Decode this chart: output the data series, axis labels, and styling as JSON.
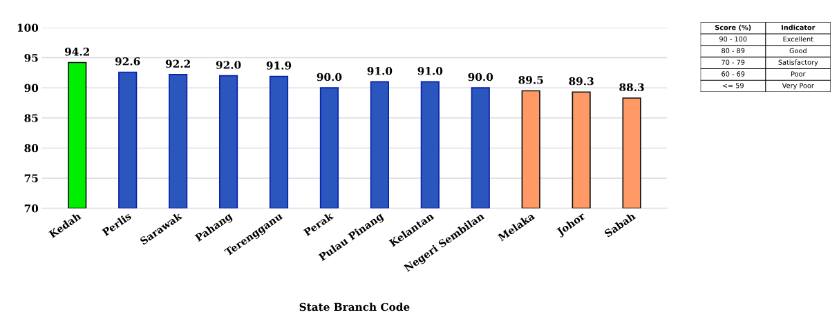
{
  "chart_data": [
    {
      "type": "bar",
      "xlabel": "State Branch Code",
      "categories": [
        "Kedah",
        "Perlis",
        "Sarawak",
        "Pahang",
        "Terengganu",
        "Perak",
        "Pulau Pinang",
        "Kelantan",
        "Negeri Sembilan",
        "Melaka",
        "Johor",
        "Sabah"
      ],
      "values": [
        94.2,
        92.6,
        92.2,
        92.0,
        91.9,
        90.0,
        91.0,
        91.0,
        90.0,
        89.5,
        89.3,
        88.3
      ],
      "value_labels": [
        "94.2",
        "92.6",
        "92.2",
        "92.0",
        "91.9",
        "90.0",
        "91.0",
        "91.0",
        "90.0",
        "89.5",
        "89.3",
        "88.3"
      ],
      "colors": [
        "#00ee00",
        "#2a56bd",
        "#2a56bd",
        "#2a56bd",
        "#2a56bd",
        "#2a56bd",
        "#2a56bd",
        "#2a56bd",
        "#2a56bd",
        "#ff9966",
        "#ff9966",
        "#ff9966"
      ],
      "ylim": [
        70,
        100
      ],
      "yticks": [
        70,
        75,
        80,
        85,
        90,
        95,
        100
      ],
      "grid": "y"
    },
    {
      "type": "other",
      "annotations": [
        "Score (%)",
        "Indicator",
        "90 - 100",
        "Excellent",
        "80 - 89",
        "Good",
        "70 - 79",
        "Satisfactory",
        "60 - 69",
        "Poor",
        "<= 59",
        "Very Poor"
      ]
    }
  ]
}
